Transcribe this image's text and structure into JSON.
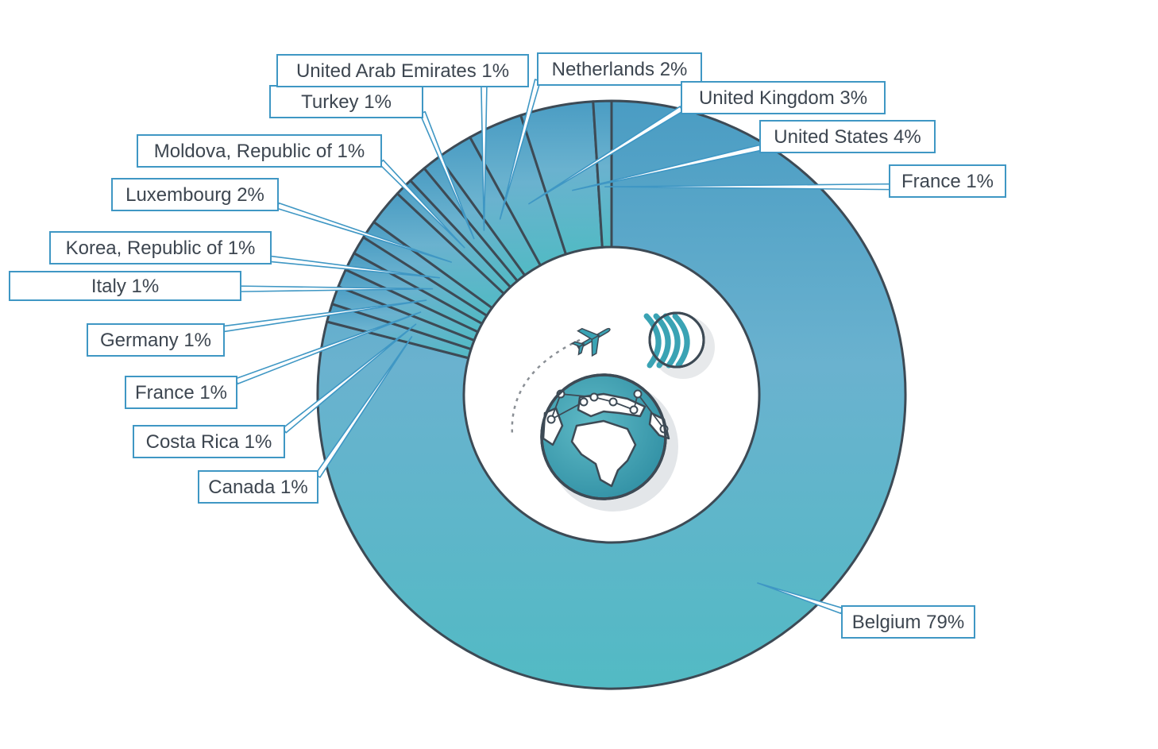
{
  "chart_data": {
    "type": "pie",
    "variant": "donut",
    "title": "",
    "unit": "%",
    "center_image": "travel-globe-airplane-illustration",
    "colors": {
      "fill_top": "#4a9cc3",
      "fill_mid": "#6ab2cf",
      "fill_bottom": "#52bac4",
      "outline": "#3d4a55",
      "callout_border": "#3f97c4",
      "label_text": "#3d4650"
    },
    "slices": [
      {
        "label": "Belgium 79%",
        "name": "Belgium",
        "value": 79
      },
      {
        "label": "Canada 1%",
        "name": "Canada",
        "value": 1
      },
      {
        "label": "Costa Rica 1%",
        "name": "Costa Rica",
        "value": 1
      },
      {
        "label": "France 1%",
        "name": "France",
        "value": 1
      },
      {
        "label": "Germany 1%",
        "name": "Germany",
        "value": 1
      },
      {
        "label": "Italy 1%",
        "name": "Italy",
        "value": 1
      },
      {
        "label": "Korea, Republic of 1%",
        "name": "Korea, Republic of",
        "value": 1
      },
      {
        "label": "Luxembourg 2%",
        "name": "Luxembourg",
        "value": 2
      },
      {
        "label": "Moldova, Republic of 1%",
        "name": "Moldova, Republic of",
        "value": 1
      },
      {
        "label": "Turkey  1%",
        "name": "Turkey",
        "value": 1
      },
      {
        "label": "United Arab Emirates 1%",
        "name": "United Arab Emirates",
        "value": 1
      },
      {
        "label": "Netherlands 2%",
        "name": "Netherlands",
        "value": 2
      },
      {
        "label": "United Kingdom 3%",
        "name": "United Kingdom",
        "value": 3
      },
      {
        "label": "United States 4%",
        "name": "United States",
        "value": 4
      },
      {
        "label": "France 1%",
        "name": "France",
        "value": 1
      }
    ]
  }
}
